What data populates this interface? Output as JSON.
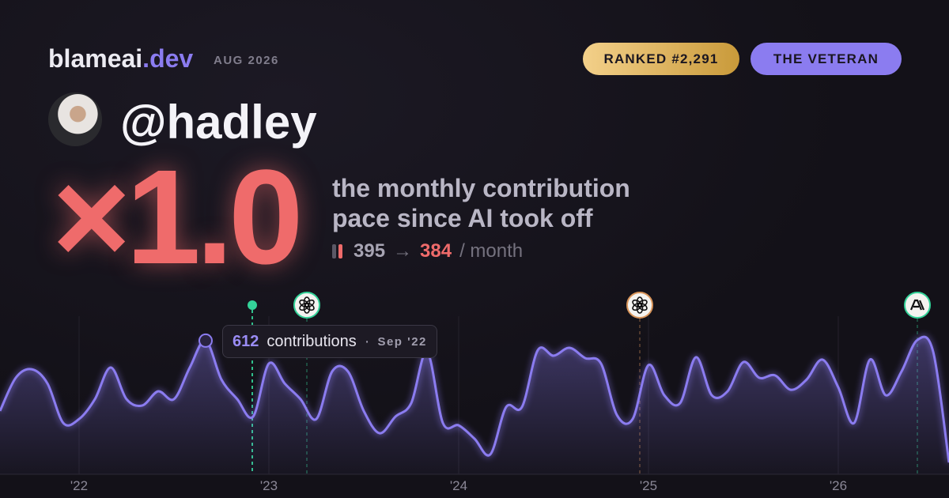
{
  "header": {
    "brand": "blameai",
    "brand_tld": ".dev",
    "date": "AUG 2026",
    "rank_badge": "RANKED #2,291",
    "title_badge": "THE VETERAN"
  },
  "profile": {
    "handle": "@hadley"
  },
  "hero": {
    "multiplier": "×1.0",
    "line1": "the monthly contribution",
    "line2": "pace since AI took off",
    "before": "395",
    "arrow": "→",
    "after": "384",
    "unit": "/ month"
  },
  "chart_data": {
    "type": "area",
    "x": [
      0,
      1,
      2,
      3,
      4,
      5,
      6,
      7,
      8,
      9,
      10,
      11,
      12,
      13,
      14,
      15,
      16,
      17,
      18,
      19,
      20,
      21,
      22,
      23,
      24,
      25,
      26,
      27,
      28,
      29,
      30,
      31,
      32,
      33,
      34,
      35,
      36,
      37,
      38,
      39,
      40,
      41,
      42,
      43,
      44,
      45,
      46,
      47,
      48,
      49,
      50,
      51,
      52,
      53,
      54,
      55,
      56,
      57,
      58,
      59,
      60
    ],
    "series": [
      {
        "name": "contributions",
        "color": "#8b7cf0",
        "values": [
          290,
          442,
          481,
          416,
          235,
          253,
          344,
          489,
          344,
          315,
          380,
          344,
          489,
          612,
          434,
          344,
          264,
          507,
          416,
          344,
          253,
          471,
          471,
          290,
          188,
          264,
          326,
          561,
          235,
          224,
          163,
          91,
          308,
          308,
          568,
          543,
          579,
          532,
          507,
          272,
          253,
          500,
          362,
          326,
          536,
          362,
          380,
          514,
          442,
          453,
          387,
          434,
          525,
          398,
          235,
          525,
          362,
          471,
          615,
          561,
          54
        ]
      }
    ],
    "xlim": [
      0,
      60
    ],
    "ylim": [
      0,
      800
    ],
    "xticks": [
      {
        "value": 5,
        "label": "'22"
      },
      {
        "value": 17,
        "label": "'23"
      },
      {
        "value": 29,
        "label": "'24"
      },
      {
        "value": 41,
        "label": "'25"
      },
      {
        "value": 53,
        "label": "'26"
      }
    ],
    "grid": true,
    "highlight": 13,
    "tooltip": {
      "label": "contributions",
      "sep": "·",
      "date": "Sep '22"
    },
    "events": [
      {
        "x": 15.95,
        "color": "#34d399"
      },
      {
        "x": 19.4,
        "color": "#34d399"
      },
      {
        "x": 40.45,
        "color": "#d9955a"
      },
      {
        "x": 58,
        "color": "#34d399"
      }
    ]
  }
}
